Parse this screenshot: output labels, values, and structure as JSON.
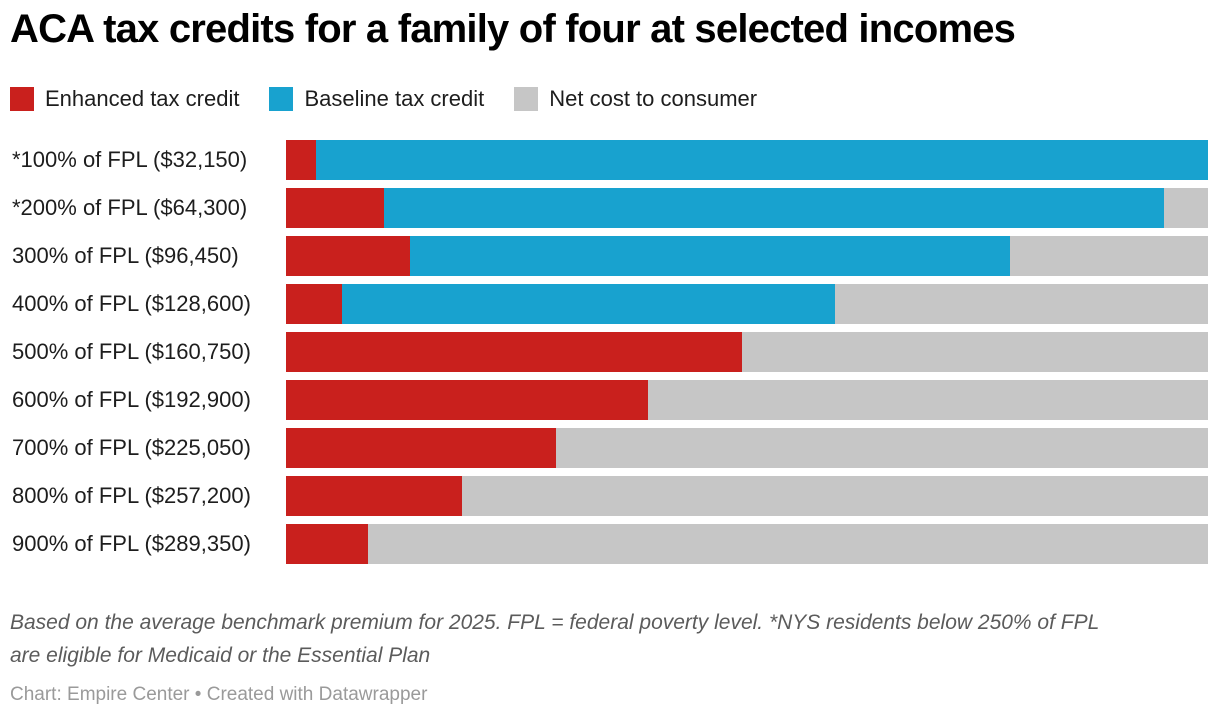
{
  "header": {
    "title": "ACA tax credits for a family of four at selected incomes"
  },
  "footer": {
    "notes": "Based on the average benchmark premium for 2025. FPL = federal poverty level. *NYS residents below 250% of FPL are eligible for Medicaid or the Essential Plan",
    "attribution": "Chart: Empire Center • Created with Datawrapper"
  },
  "colors": {
    "enhanced": "#c9201d",
    "baseline": "#18a2cf",
    "net_cost": "#c6c6c6",
    "title_text": "#000000",
    "label_text": "#1d1d1d",
    "notes_text": "#5b5b5b",
    "attribution_text": "#9a9a9a"
  },
  "chart_data": {
    "type": "bar",
    "orientation": "horizontal",
    "stacked": true,
    "grid": false,
    "legend_position": "top",
    "title": "ACA tax credits for a family of four at selected incomes",
    "xlabel": "",
    "ylabel": "",
    "xlim": [
      0,
      100
    ],
    "values_unit": "percent of average benchmark premium (estimated from bar lengths; chart has no numeric axis)",
    "categories": [
      "*100% of FPL ($32,150)",
      "*200% of FPL ($64,300)",
      "300% of FPL ($96,450)",
      "400% of FPL ($128,600)",
      "500% of FPL ($160,750)",
      "600% of FPL ($192,900)",
      "700% of FPL ($225,050)",
      "800% of FPL ($257,200)",
      "900% of FPL ($289,350)"
    ],
    "series": [
      {
        "name": "Enhanced tax credit",
        "slug": "enhanced-tax-credit",
        "color": "#c9201d",
        "values": [
          3.3,
          10.6,
          13.4,
          6.1,
          49.5,
          39.3,
          29.3,
          19.1,
          8.9
        ]
      },
      {
        "name": "Baseline tax credit",
        "slug": "baseline-tax-credit",
        "color": "#18a2cf",
        "values": [
          96.7,
          84.6,
          65.1,
          53.4,
          0,
          0,
          0,
          0,
          0
        ]
      },
      {
        "name": "Net cost to consumer",
        "slug": "net-cost-to-consumer",
        "color": "#c6c6c6",
        "values": [
          0,
          4.8,
          21.5,
          40.5,
          50.5,
          60.7,
          70.7,
          80.9,
          91.1
        ]
      }
    ]
  }
}
